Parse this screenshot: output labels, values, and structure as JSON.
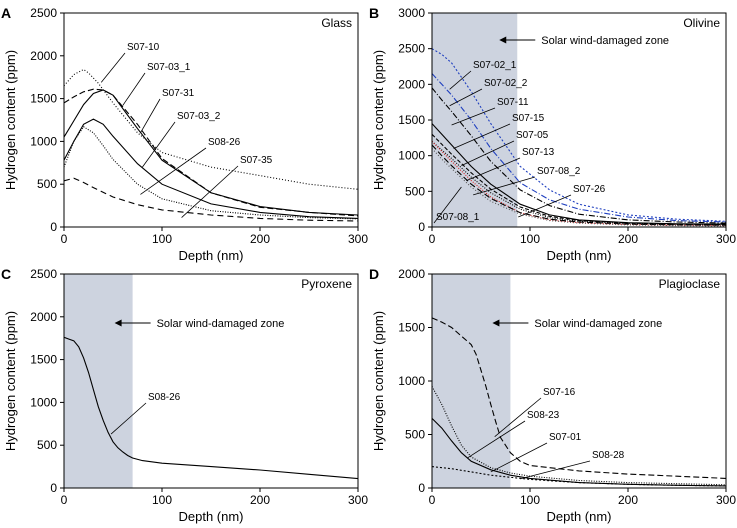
{
  "panels": [
    {
      "letter": "A",
      "title": "Glass",
      "xlabel": "Depth (nm)",
      "ylabel": "Hydrogen content (ppm)",
      "xlim": [
        0,
        300
      ],
      "ylim": [
        0,
        2500
      ],
      "xticks": [
        0,
        100,
        200,
        300
      ],
      "yticks": [
        0,
        500,
        1000,
        1500,
        2000,
        2500
      ]
    },
    {
      "letter": "B",
      "title": "Olivine",
      "xlabel": "Depth (nm)",
      "ylabel": "Hydrogen content (ppm)",
      "xlim": [
        0,
        300
      ],
      "ylim": [
        0,
        3000
      ],
      "xticks": [
        0,
        100,
        200,
        300
      ],
      "yticks": [
        0,
        500,
        1000,
        1500,
        2000,
        2500,
        3000
      ],
      "zone": {
        "label": "Solar wind-damaged zone",
        "x_end": 87
      }
    },
    {
      "letter": "C",
      "title": "Pyroxene",
      "xlabel": "Depth (nm)",
      "ylabel": "Hydrogen content (ppm)",
      "xlim": [
        0,
        300
      ],
      "ylim": [
        0,
        2500
      ],
      "xticks": [
        0,
        100,
        200,
        300
      ],
      "yticks": [
        0,
        500,
        1000,
        1500,
        2000,
        2500
      ],
      "zone": {
        "label": "Solar wind-damaged zone",
        "x_end": 70
      }
    },
    {
      "letter": "D",
      "title": "Plagioclase",
      "xlabel": "Depth (nm)",
      "ylabel": "Hydrogen content (ppm)",
      "xlim": [
        0,
        300
      ],
      "ylim": [
        0,
        2000
      ],
      "xticks": [
        0,
        100,
        200,
        300
      ],
      "yticks": [
        0,
        500,
        1000,
        1500,
        2000
      ],
      "zone": {
        "label": "Solar wind-damaged zone",
        "x_end": 80
      }
    }
  ],
  "chart_data": [
    {
      "type": "line",
      "panel": "A",
      "series": [
        {
          "name": "S07-10",
          "color": "#000000",
          "dash": "1,2",
          "x": [
            0,
            10,
            20,
            25,
            35,
            50,
            75,
            100,
            150,
            200,
            250,
            300
          ],
          "y": [
            1650,
            1780,
            1840,
            1800,
            1680,
            1450,
            1100,
            870,
            700,
            600,
            500,
            440
          ]
        },
        {
          "name": "S07-03_1",
          "color": "#000000",
          "dash": "6,3",
          "x": [
            0,
            10,
            20,
            30,
            40,
            50,
            75,
            100,
            150,
            200,
            250,
            300
          ],
          "y": [
            1450,
            1520,
            1580,
            1610,
            1600,
            1540,
            1200,
            800,
            400,
            230,
            170,
            130
          ]
        },
        {
          "name": "S07-31",
          "color": "#000000",
          "dash": "",
          "x": [
            0,
            10,
            20,
            30,
            40,
            50,
            75,
            100,
            150,
            200,
            250,
            300
          ],
          "y": [
            1050,
            1240,
            1430,
            1560,
            1600,
            1540,
            1150,
            780,
            400,
            240,
            170,
            140
          ]
        },
        {
          "name": "S07-03_2",
          "color": "#000000",
          "dash": "",
          "x": [
            0,
            10,
            20,
            30,
            40,
            50,
            75,
            100,
            150,
            200,
            250,
            300
          ],
          "y": [
            780,
            1000,
            1200,
            1260,
            1200,
            1060,
            740,
            500,
            270,
            170,
            120,
            100
          ]
        },
        {
          "name": "S08-26",
          "color": "#000000",
          "dash": "1,1.5",
          "x": [
            0,
            10,
            20,
            30,
            40,
            50,
            75,
            100,
            150,
            200,
            250,
            300
          ],
          "y": [
            700,
            1000,
            1170,
            1100,
            950,
            790,
            500,
            330,
            190,
            140,
            110,
            95
          ]
        },
        {
          "name": "S07-35",
          "color": "#000000",
          "dash": "6,4",
          "x": [
            0,
            10,
            20,
            30,
            50,
            75,
            100,
            150,
            200,
            250,
            300
          ],
          "y": [
            540,
            570,
            520,
            460,
            350,
            260,
            200,
            140,
            100,
            80,
            70
          ]
        }
      ]
    },
    {
      "type": "line",
      "panel": "B",
      "series": [
        {
          "name": "S07-02_1",
          "color": "#1f3fbf",
          "dash": "2,2",
          "x": [
            0,
            10,
            20,
            40,
            60,
            90,
            120,
            150,
            200,
            250,
            300
          ],
          "y": [
            2500,
            2420,
            2300,
            1900,
            1450,
            850,
            520,
            320,
            170,
            110,
            80
          ]
        },
        {
          "name": "S07-02_2",
          "color": "#1f3fbf",
          "dash": "6,2,1,2",
          "x": [
            0,
            10,
            20,
            40,
            60,
            90,
            120,
            150,
            200,
            250,
            300
          ],
          "y": [
            2150,
            2000,
            1850,
            1500,
            1100,
            620,
            380,
            250,
            140,
            90,
            70
          ]
        },
        {
          "name": "S07-11",
          "color": "#000000",
          "dash": "6,2,1,2",
          "x": [
            0,
            10,
            20,
            40,
            60,
            90,
            120,
            150,
            200,
            250,
            300
          ],
          "y": [
            1950,
            1780,
            1620,
            1280,
            920,
            520,
            300,
            180,
            100,
            70,
            55
          ]
        },
        {
          "name": "S07-15",
          "color": "#000000",
          "dash": "",
          "x": [
            0,
            10,
            20,
            40,
            60,
            90,
            120,
            150,
            200,
            250,
            300
          ],
          "y": [
            1450,
            1300,
            1150,
            850,
            600,
            320,
            170,
            100,
            60,
            45,
            40
          ]
        },
        {
          "name": "S07-05",
          "color": "#000000",
          "dash": "4,2",
          "x": [
            0,
            10,
            20,
            40,
            60,
            90,
            120,
            150,
            200,
            250,
            300
          ],
          "y": [
            1300,
            1160,
            1020,
            760,
            530,
            280,
            150,
            90,
            55,
            40,
            35
          ]
        },
        {
          "name": "S07-13",
          "color": "#000000",
          "dash": "1,1.5",
          "x": [
            0,
            10,
            20,
            40,
            60,
            90,
            120,
            150,
            200,
            250,
            300
          ],
          "y": [
            1200,
            1080,
            960,
            700,
            480,
            250,
            130,
            80,
            50,
            35,
            30
          ]
        },
        {
          "name": "S07-08_2",
          "color": "#d42020",
          "dash": "1,1.5",
          "x": [
            0,
            10,
            20,
            40,
            60,
            90,
            120,
            150,
            200,
            250,
            300
          ],
          "y": [
            1200,
            1060,
            920,
            650,
            420,
            200,
            100,
            60,
            35,
            25,
            20
          ]
        },
        {
          "name": "S07-26",
          "color": "#000000",
          "dash": "6,3",
          "x": [
            0,
            10,
            20,
            40,
            60,
            90,
            120,
            150,
            200,
            250,
            300
          ],
          "y": [
            1150,
            1000,
            860,
            600,
            400,
            200,
            110,
            70,
            40,
            30,
            25
          ]
        },
        {
          "name": "S07-08_1",
          "color": "#555555",
          "dash": "1,2",
          "x": [
            0,
            10,
            20,
            40,
            60,
            90,
            120,
            150,
            200,
            250,
            300
          ],
          "y": [
            1100,
            950,
            820,
            560,
            360,
            180,
            90,
            55,
            30,
            20,
            15
          ]
        }
      ]
    },
    {
      "type": "line",
      "panel": "C",
      "series": [
        {
          "name": "S08-26",
          "color": "#000000",
          "dash": "",
          "x": [
            0,
            5,
            10,
            15,
            20,
            25,
            30,
            35,
            40,
            45,
            50,
            55,
            60,
            65,
            70,
            80,
            100,
            150,
            200,
            250,
            300
          ],
          "y": [
            1760,
            1740,
            1720,
            1650,
            1520,
            1350,
            1150,
            950,
            790,
            650,
            540,
            470,
            420,
            380,
            350,
            320,
            290,
            250,
            210,
            160,
            110
          ]
        }
      ]
    },
    {
      "type": "line",
      "panel": "D",
      "series": [
        {
          "name": "S07-16",
          "color": "#000000",
          "dash": "6,3",
          "x": [
            0,
            10,
            20,
            30,
            40,
            45,
            50,
            55,
            60,
            65,
            70,
            80,
            90,
            100,
            150,
            200,
            250,
            300
          ],
          "y": [
            1590,
            1550,
            1500,
            1420,
            1340,
            1250,
            1100,
            950,
            780,
            620,
            470,
            330,
            250,
            210,
            160,
            130,
            110,
            90
          ]
        },
        {
          "name": "S08-23",
          "color": "#000000",
          "dash": "1,1.5",
          "x": [
            0,
            10,
            20,
            30,
            40,
            60,
            80,
            100,
            150,
            200,
            250,
            300
          ],
          "y": [
            950,
            780,
            580,
            400,
            290,
            190,
            140,
            110,
            70,
            50,
            40,
            30
          ]
        },
        {
          "name": "S07-01",
          "color": "#000000",
          "dash": "",
          "x": [
            0,
            10,
            20,
            30,
            40,
            60,
            80,
            100,
            150,
            200,
            250,
            300
          ],
          "y": [
            650,
            560,
            440,
            330,
            250,
            170,
            120,
            90,
            50,
            35,
            25,
            20
          ]
        },
        {
          "name": "S08-28",
          "color": "#000000",
          "dash": "2,2",
          "x": [
            0,
            20,
            40,
            60,
            80,
            100,
            150,
            200,
            250,
            300
          ],
          "y": [
            200,
            180,
            150,
            120,
            100,
            80,
            50,
            35,
            25,
            20
          ]
        }
      ]
    }
  ]
}
